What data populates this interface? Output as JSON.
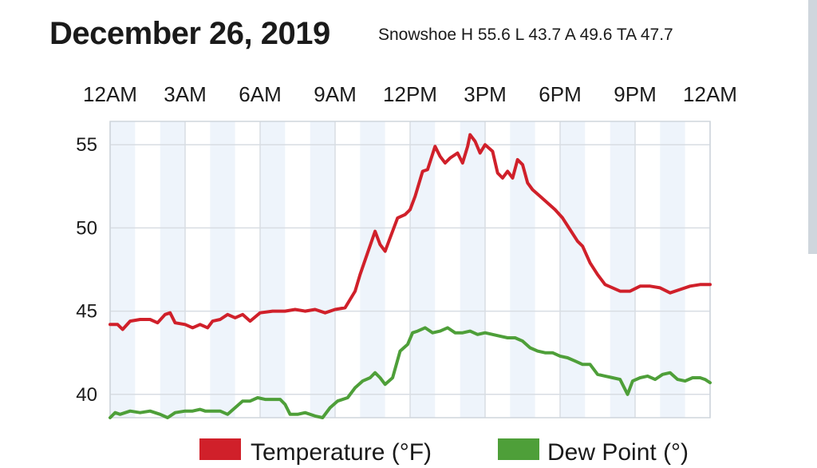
{
  "chart_data": {
    "type": "line",
    "title": "December 26, 2019",
    "subtitle": "Snowshoe H 55.6 L 43.7 A 49.6 TA 47.7",
    "x_range_hours": [
      0,
      24
    ],
    "x_tick_labels": [
      "12AM",
      "3AM",
      "6AM",
      "9AM",
      "12PM",
      "3PM",
      "6PM",
      "9PM",
      "12AM"
    ],
    "ylim": [
      38.6,
      56.4
    ],
    "y_ticks": [
      40,
      45,
      50,
      55
    ],
    "grid": true,
    "legend": "bottom",
    "series": [
      {
        "name": "Temperature (°F)",
        "color": "#d0202a",
        "points": [
          [
            0.0,
            44.2
          ],
          [
            0.3,
            44.2
          ],
          [
            0.5,
            43.9
          ],
          [
            0.8,
            44.4
          ],
          [
            1.2,
            44.5
          ],
          [
            1.6,
            44.5
          ],
          [
            1.9,
            44.3
          ],
          [
            2.2,
            44.8
          ],
          [
            2.4,
            44.9
          ],
          [
            2.6,
            44.3
          ],
          [
            3.0,
            44.2
          ],
          [
            3.3,
            44.0
          ],
          [
            3.6,
            44.2
          ],
          [
            3.9,
            44.0
          ],
          [
            4.1,
            44.4
          ],
          [
            4.4,
            44.5
          ],
          [
            4.7,
            44.8
          ],
          [
            5.0,
            44.6
          ],
          [
            5.3,
            44.8
          ],
          [
            5.6,
            44.4
          ],
          [
            6.0,
            44.9
          ],
          [
            6.5,
            45.0
          ],
          [
            7.0,
            45.0
          ],
          [
            7.4,
            45.1
          ],
          [
            7.8,
            45.0
          ],
          [
            8.2,
            45.1
          ],
          [
            8.6,
            44.9
          ],
          [
            9.0,
            45.1
          ],
          [
            9.4,
            45.2
          ],
          [
            9.6,
            45.7
          ],
          [
            9.8,
            46.2
          ],
          [
            10.0,
            47.2
          ],
          [
            10.3,
            48.5
          ],
          [
            10.6,
            49.8
          ],
          [
            10.8,
            49.0
          ],
          [
            11.0,
            48.6
          ],
          [
            11.2,
            49.4
          ],
          [
            11.5,
            50.6
          ],
          [
            11.8,
            50.8
          ],
          [
            12.0,
            51.1
          ],
          [
            12.2,
            51.9
          ],
          [
            12.5,
            53.4
          ],
          [
            12.7,
            53.5
          ],
          [
            13.0,
            54.9
          ],
          [
            13.2,
            54.3
          ],
          [
            13.4,
            53.9
          ],
          [
            13.6,
            54.2
          ],
          [
            13.9,
            54.5
          ],
          [
            14.1,
            53.9
          ],
          [
            14.3,
            54.9
          ],
          [
            14.4,
            55.6
          ],
          [
            14.6,
            55.2
          ],
          [
            14.8,
            54.5
          ],
          [
            15.0,
            55.0
          ],
          [
            15.3,
            54.6
          ],
          [
            15.5,
            53.3
          ],
          [
            15.7,
            53.0
          ],
          [
            15.9,
            53.4
          ],
          [
            16.1,
            53.0
          ],
          [
            16.3,
            54.1
          ],
          [
            16.5,
            53.8
          ],
          [
            16.7,
            52.7
          ],
          [
            16.9,
            52.3
          ],
          [
            17.2,
            51.9
          ],
          [
            17.5,
            51.5
          ],
          [
            17.8,
            51.1
          ],
          [
            18.1,
            50.6
          ],
          [
            18.4,
            49.9
          ],
          [
            18.7,
            49.2
          ],
          [
            18.9,
            48.9
          ],
          [
            19.2,
            47.9
          ],
          [
            19.5,
            47.2
          ],
          [
            19.8,
            46.6
          ],
          [
            20.1,
            46.4
          ],
          [
            20.4,
            46.2
          ],
          [
            20.8,
            46.2
          ],
          [
            21.2,
            46.5
          ],
          [
            21.6,
            46.5
          ],
          [
            22.0,
            46.4
          ],
          [
            22.4,
            46.1
          ],
          [
            22.8,
            46.3
          ],
          [
            23.2,
            46.5
          ],
          [
            23.6,
            46.6
          ],
          [
            24.0,
            46.6
          ]
        ]
      },
      {
        "name": "Dew Point (°)",
        "color": "#4e9f39",
        "points": [
          [
            0.0,
            38.6
          ],
          [
            0.2,
            38.9
          ],
          [
            0.4,
            38.8
          ],
          [
            0.8,
            39.0
          ],
          [
            1.2,
            38.9
          ],
          [
            1.6,
            39.0
          ],
          [
            2.0,
            38.8
          ],
          [
            2.3,
            38.6
          ],
          [
            2.6,
            38.9
          ],
          [
            3.0,
            39.0
          ],
          [
            3.3,
            39.0
          ],
          [
            3.6,
            39.1
          ],
          [
            3.8,
            39.0
          ],
          [
            4.1,
            39.0
          ],
          [
            4.4,
            39.0
          ],
          [
            4.7,
            38.8
          ],
          [
            5.0,
            39.2
          ],
          [
            5.3,
            39.6
          ],
          [
            5.6,
            39.6
          ],
          [
            5.9,
            39.8
          ],
          [
            6.2,
            39.7
          ],
          [
            6.5,
            39.7
          ],
          [
            6.8,
            39.7
          ],
          [
            7.0,
            39.4
          ],
          [
            7.2,
            38.8
          ],
          [
            7.5,
            38.8
          ],
          [
            7.8,
            38.9
          ],
          [
            8.2,
            38.7
          ],
          [
            8.5,
            38.6
          ],
          [
            8.8,
            39.2
          ],
          [
            9.1,
            39.6
          ],
          [
            9.5,
            39.8
          ],
          [
            9.8,
            40.4
          ],
          [
            10.1,
            40.8
          ],
          [
            10.4,
            41.0
          ],
          [
            10.6,
            41.3
          ],
          [
            10.8,
            41.0
          ],
          [
            11.0,
            40.6
          ],
          [
            11.3,
            41.0
          ],
          [
            11.6,
            42.6
          ],
          [
            11.9,
            43.0
          ],
          [
            12.1,
            43.7
          ],
          [
            12.3,
            43.8
          ],
          [
            12.6,
            44.0
          ],
          [
            12.9,
            43.7
          ],
          [
            13.2,
            43.8
          ],
          [
            13.5,
            44.0
          ],
          [
            13.8,
            43.7
          ],
          [
            14.1,
            43.7
          ],
          [
            14.4,
            43.8
          ],
          [
            14.7,
            43.6
          ],
          [
            15.0,
            43.7
          ],
          [
            15.3,
            43.6
          ],
          [
            15.6,
            43.5
          ],
          [
            15.9,
            43.4
          ],
          [
            16.2,
            43.4
          ],
          [
            16.5,
            43.2
          ],
          [
            16.8,
            42.8
          ],
          [
            17.1,
            42.6
          ],
          [
            17.4,
            42.5
          ],
          [
            17.7,
            42.5
          ],
          [
            18.0,
            42.3
          ],
          [
            18.3,
            42.2
          ],
          [
            18.6,
            42.0
          ],
          [
            18.9,
            41.8
          ],
          [
            19.2,
            41.8
          ],
          [
            19.5,
            41.2
          ],
          [
            19.8,
            41.1
          ],
          [
            20.1,
            41.0
          ],
          [
            20.4,
            40.9
          ],
          [
            20.7,
            40.0
          ],
          [
            20.9,
            40.8
          ],
          [
            21.2,
            41.0
          ],
          [
            21.5,
            41.1
          ],
          [
            21.8,
            40.9
          ],
          [
            22.1,
            41.2
          ],
          [
            22.4,
            41.3
          ],
          [
            22.7,
            40.9
          ],
          [
            23.0,
            40.8
          ],
          [
            23.3,
            41.0
          ],
          [
            23.6,
            41.0
          ],
          [
            23.8,
            40.9
          ],
          [
            24.0,
            40.7
          ]
        ]
      }
    ]
  }
}
